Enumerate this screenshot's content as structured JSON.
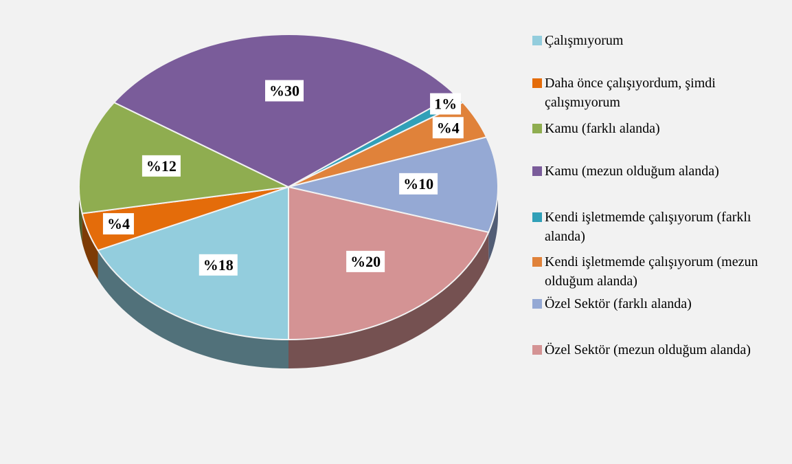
{
  "chart_data": {
    "type": "pie",
    "categories": [
      "Çalışmıyorum",
      "Daha önce çalışıyordum, şimdi çalışmıyorum",
      "Kamu (farklı alanda)",
      "Kamu (mezun olduğum alanda)",
      "Kendi işletmemde çalışıyorum (farklı alanda)",
      "Kendi işletmemde çalışıyorum (mezun olduğum alanda)",
      "Özel Sektör (farklı alanda)",
      "Özel Sektör (mezun olduğum alanda)"
    ],
    "values": [
      18,
      4,
      12,
      30,
      1,
      4,
      10,
      20
    ],
    "value_labels": [
      "%18",
      "%4",
      "%12",
      "%30",
      "1%",
      "%4",
      "%10",
      "%20"
    ],
    "colors": [
      "#93cddd",
      "#e46c0a",
      "#8fad50",
      "#7a5c9a",
      "#31a0b8",
      "#e0823a",
      "#95a9d4",
      "#d49394"
    ],
    "legend": "right"
  }
}
